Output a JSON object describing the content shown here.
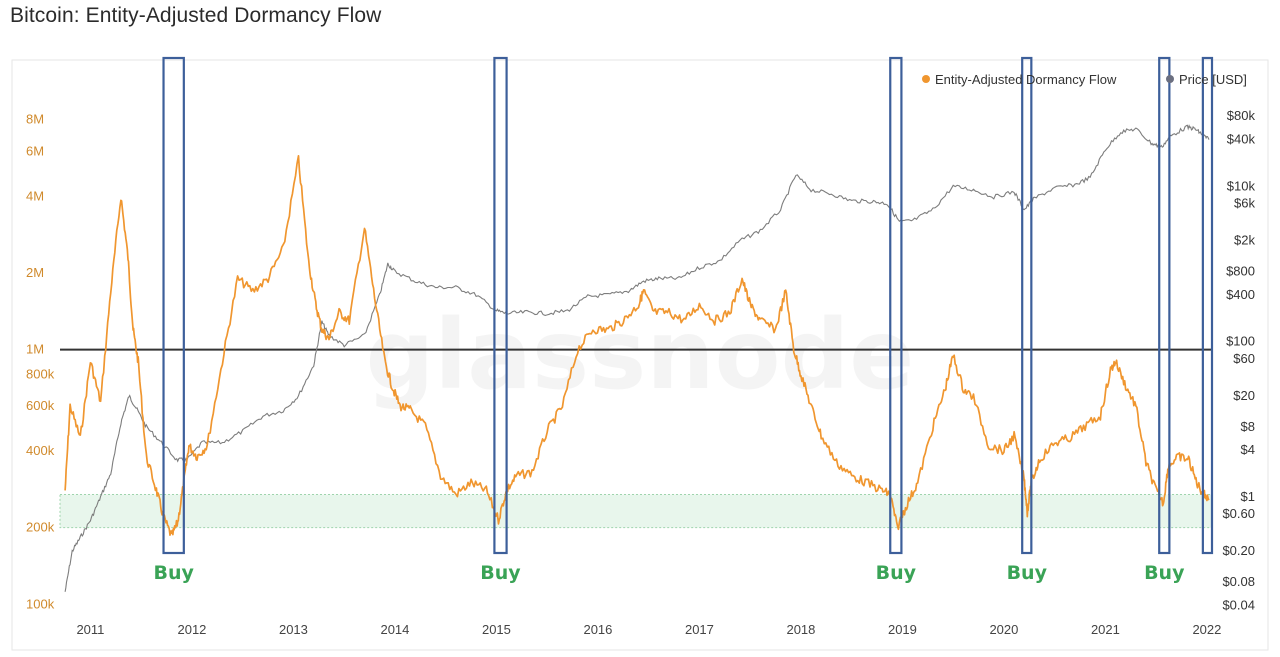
{
  "title": "Bitcoin: Entity-Adjusted Dormancy Flow",
  "watermark": "glassnode",
  "colors": {
    "dormancy": "#f0962f",
    "price": "#7d7d7d",
    "buy_box": "#3d5f9a",
    "buy_label": "#3aa356",
    "zone_fill": "#e8f6ec",
    "zone_border": "#9fd4ad",
    "reference_line": "#333333"
  },
  "legend": [
    {
      "label": "Entity-Adjusted Dormancy Flow",
      "color": "#f0962f"
    },
    {
      "label": "Price [USD]",
      "color": "#6b6f80"
    }
  ],
  "chart_data": {
    "type": "line",
    "title": "Bitcoin: Entity-Adjusted Dormancy Flow",
    "x_ticks": [
      "2011",
      "2012",
      "2013",
      "2014",
      "2015",
      "2016",
      "2017",
      "2018",
      "2019",
      "2020",
      "2021",
      "2022"
    ],
    "xlim": [
      2010.7,
      2022.05
    ],
    "left_axis": {
      "scale": "log",
      "ylim": [
        95000,
        10000000
      ],
      "ticks": [
        "100k",
        "200k",
        "400k",
        "600k",
        "800k",
        "1M",
        "2M",
        "4M",
        "6M",
        "8M"
      ],
      "tick_values": [
        100000,
        200000,
        400000,
        600000,
        800000,
        1000000,
        2000000,
        4000000,
        6000000,
        8000000
      ]
    },
    "right_axis": {
      "scale": "log",
      "ylim": [
        0.035,
        150000
      ],
      "ticks": [
        "$0.04",
        "$0.08",
        "$0.20",
        "$0.60",
        "$1",
        "$4",
        "$8",
        "$20",
        "$60",
        "$100",
        "$400",
        "$800",
        "$2k",
        "$6k",
        "$10k",
        "$40k",
        "$80k"
      ],
      "tick_values": [
        0.04,
        0.08,
        0.2,
        0.6,
        1,
        4,
        8,
        20,
        60,
        100,
        400,
        800,
        2000,
        6000,
        10000,
        40000,
        80000
      ]
    },
    "reference_line": 1000000,
    "buy_zone": [
      200000,
      270000
    ],
    "series": [
      {
        "name": "Entity-Adjusted Dormancy Flow",
        "axis": "left",
        "x": [
          2010.75,
          2010.8,
          2010.9,
          2011.0,
          2011.1,
          2011.2,
          2011.3,
          2011.37,
          2011.42,
          2011.47,
          2011.55,
          2011.65,
          2011.72,
          2011.8,
          2011.86,
          2011.92,
          2011.97,
          2012.05,
          2012.15,
          2012.3,
          2012.45,
          2012.6,
          2012.75,
          2012.9,
          2013.05,
          2013.15,
          2013.22,
          2013.28,
          2013.35,
          2013.45,
          2013.55,
          2013.7,
          2013.8,
          2013.9,
          2013.97,
          2014.05,
          2014.15,
          2014.3,
          2014.45,
          2014.6,
          2014.75,
          2014.9,
          2015.02,
          2015.1,
          2015.2,
          2015.35,
          2015.5,
          2015.65,
          2015.8,
          2015.95,
          2016.1,
          2016.25,
          2016.4,
          2016.45,
          2016.55,
          2016.7,
          2016.85,
          2017.0,
          2017.15,
          2017.3,
          2017.42,
          2017.5,
          2017.6,
          2017.75,
          2017.85,
          2017.93,
          2018.0,
          2018.1,
          2018.2,
          2018.35,
          2018.5,
          2018.65,
          2018.8,
          2018.88,
          2018.95,
          2019.05,
          2019.15,
          2019.3,
          2019.42,
          2019.5,
          2019.6,
          2019.7,
          2019.85,
          2020.0,
          2020.1,
          2020.2,
          2020.23,
          2020.27,
          2020.35,
          2020.5,
          2020.65,
          2020.8,
          2020.95,
          2021.05,
          2021.1,
          2021.2,
          2021.3,
          2021.4,
          2021.5,
          2021.57,
          2021.62,
          2021.72,
          2021.82,
          2021.9,
          2021.97,
          2022.02
        ],
        "values": [
          280000,
          600000,
          450000,
          900000,
          620000,
          1700000,
          4000000,
          2300000,
          1200000,
          900000,
          380000,
          280000,
          220000,
          185000,
          210000,
          300000,
          420000,
          380000,
          420000,
          900000,
          1900000,
          1700000,
          1900000,
          2500000,
          5600000,
          2200000,
          1500000,
          1200000,
          1100000,
          1400000,
          1300000,
          3000000,
          1600000,
          900000,
          720000,
          600000,
          580000,
          500000,
          320000,
          270000,
          300000,
          280000,
          215000,
          280000,
          320000,
          330000,
          480000,
          600000,
          1000000,
          1200000,
          1200000,
          1300000,
          1500000,
          1700000,
          1400000,
          1400000,
          1300000,
          1500000,
          1300000,
          1400000,
          1900000,
          1500000,
          1300000,
          1200000,
          1700000,
          1000000,
          800000,
          600000,
          460000,
          360000,
          320000,
          300000,
          280000,
          270000,
          200000,
          250000,
          300000,
          500000,
          700000,
          950000,
          700000,
          650000,
          420000,
          400000,
          460000,
          310000,
          230000,
          300000,
          370000,
          430000,
          450000,
          500000,
          550000,
          830000,
          900000,
          720000,
          600000,
          360000,
          280000,
          250000,
          350000,
          380000,
          370000,
          300000,
          270000,
          260000
        ]
      },
      {
        "name": "Price [USD]",
        "axis": "right",
        "x": [
          2010.75,
          2010.82,
          2010.9,
          2011.0,
          2011.1,
          2011.2,
          2011.3,
          2011.38,
          2011.45,
          2011.55,
          2011.7,
          2011.85,
          2011.95,
          2012.1,
          2012.3,
          2012.5,
          2012.7,
          2012.9,
          2013.05,
          2013.2,
          2013.28,
          2013.35,
          2013.5,
          2013.7,
          2013.85,
          2013.93,
          2014.0,
          2014.2,
          2014.4,
          2014.6,
          2014.8,
          2015.0,
          2015.1,
          2015.3,
          2015.5,
          2015.7,
          2015.9,
          2016.1,
          2016.3,
          2016.45,
          2016.6,
          2016.8,
          2017.0,
          2017.2,
          2017.4,
          2017.6,
          2017.8,
          2017.95,
          2018.1,
          2018.3,
          2018.5,
          2018.7,
          2018.85,
          2018.97,
          2019.1,
          2019.3,
          2019.5,
          2019.7,
          2019.9,
          2020.1,
          2020.2,
          2020.3,
          2020.5,
          2020.7,
          2020.85,
          2021.0,
          2021.15,
          2021.3,
          2021.45,
          2021.55,
          2021.65,
          2021.8,
          2021.88,
          2021.95,
          2022.02
        ],
        "values": [
          0.06,
          0.2,
          0.3,
          0.5,
          1,
          2,
          9,
          20,
          14,
          8,
          5,
          3,
          3,
          5,
          5,
          7,
          11,
          13,
          20,
          50,
          180,
          120,
          90,
          120,
          400,
          1000,
          800,
          600,
          500,
          500,
          400,
          250,
          230,
          240,
          230,
          250,
          380,
          400,
          450,
          600,
          650,
          650,
          900,
          1100,
          2000,
          2700,
          5000,
          14000,
          9000,
          8000,
          6500,
          6400,
          6000,
          3500,
          3600,
          5000,
          10000,
          9000,
          7300,
          8500,
          5000,
          7000,
          9500,
          10500,
          13000,
          30000,
          50000,
          55000,
          36000,
          32000,
          45000,
          58000,
          55000,
          47000,
          40000
        ]
      }
    ],
    "buy_windows": [
      {
        "label": "Buy",
        "x_start": 2011.72,
        "x_end": 2011.92
      },
      {
        "label": "Buy",
        "x_start": 2014.98,
        "x_end": 2015.1
      },
      {
        "label": "Buy",
        "x_start": 2018.88,
        "x_end": 2018.99
      },
      {
        "label": "Buy",
        "x_start": 2020.18,
        "x_end": 2020.27
      },
      {
        "label": "Buy",
        "x_start": 2021.53,
        "x_end": 2021.63
      },
      {
        "label": "",
        "x_start": 2021.96,
        "x_end": 2022.05
      }
    ]
  }
}
